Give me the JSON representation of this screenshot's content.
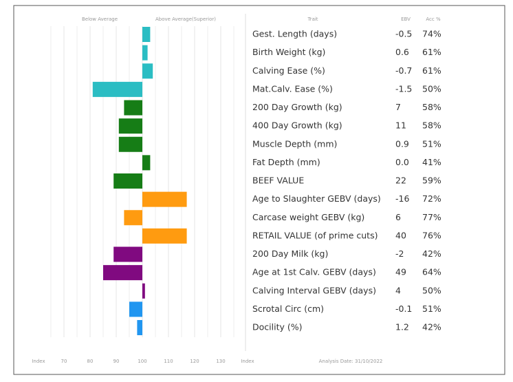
{
  "chart_data": {
    "type": "bar",
    "header": {
      "below": "Below Average",
      "above": "Above Average(Superior)",
      "trait": "Trait",
      "ebv": "EBV",
      "acc": "Acc %"
    },
    "categories": [
      "Gest. Length (days)",
      "Birth Weight (kg)",
      "Calving Ease (%)",
      "Mat.Calv. Ease (%)",
      "200 Day Growth (kg)",
      "400 Day Growth (kg)",
      "Muscle Depth (mm)",
      "Fat Depth (mm)",
      "BEEF VALUE",
      "Age to Slaughter GEBV (days)",
      "Carcase weight GEBV (kg)",
      "RETAIL VALUE (of prime cuts)",
      "200 Day Milk (kg)",
      "Age at 1st Calv. GEBV (days)",
      "Calving Interval GEBV (days)",
      "Scrotal Circ (cm)",
      "Docility (%)"
    ],
    "values": [
      103,
      102,
      104,
      81,
      93,
      91,
      91,
      103,
      89,
      117,
      93,
      117,
      89,
      85,
      101,
      95,
      98
    ],
    "colors": [
      "#2bbdc3",
      "#2bbdc3",
      "#2bbdc3",
      "#2bbdc3",
      "#167d16",
      "#167d16",
      "#167d16",
      "#167d16",
      "#167d16",
      "#ff9b10",
      "#ff9b10",
      "#ff9b10",
      "#800a80",
      "#800a80",
      "#800a80",
      "#2196f0",
      "#2196f0"
    ],
    "ebv": [
      "-0.5",
      "0.6",
      "-0.7",
      "-1.5",
      "7",
      "11",
      "0.9",
      "0.0",
      "22",
      "-16",
      "6",
      "40",
      "-2",
      "49",
      "4",
      "-0.1",
      "1.2"
    ],
    "acc": [
      "74%",
      "61%",
      "61%",
      "50%",
      "58%",
      "58%",
      "51%",
      "41%",
      "59%",
      "72%",
      "77%",
      "76%",
      "42%",
      "64%",
      "50%",
      "51%",
      "42%"
    ],
    "base": 100,
    "xlim": [
      60,
      140
    ],
    "xticks": [
      70,
      80,
      90,
      100,
      110,
      120,
      130
    ],
    "xminor": [
      65,
      75,
      85,
      95,
      105,
      115,
      125,
      135
    ],
    "axis_left": "Index",
    "axis_right": "Index",
    "footer": "Analysis Date: 31/10/2022"
  }
}
